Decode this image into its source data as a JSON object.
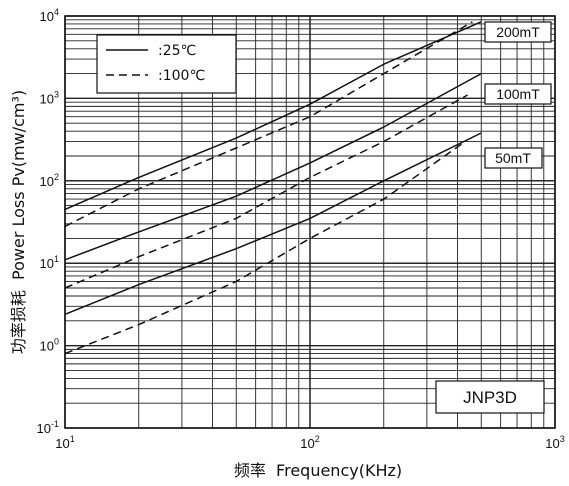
{
  "chart_data": {
    "type": "line",
    "xscale": "log",
    "yscale": "log",
    "xlim": [
      10,
      1000
    ],
    "ylim": [
      0.1,
      10000
    ],
    "xlabel": "频率  Frequency(KHz)",
    "ylabel": "功率损耗  Power Loss Pv(mw/cm³)",
    "x_tick_labels": [
      {
        "base": "10",
        "exp": "1"
      },
      {
        "base": "10",
        "exp": "2"
      },
      {
        "base": "10",
        "exp": "3"
      }
    ],
    "y_tick_labels": [
      {
        "base": "10",
        "exp": "-1"
      },
      {
        "base": "10",
        "exp": "0"
      },
      {
        "base": "10",
        "exp": "1"
      },
      {
        "base": "10",
        "exp": "2"
      },
      {
        "base": "10",
        "exp": "3"
      },
      {
        "base": "10",
        "exp": "4"
      }
    ],
    "grid": true,
    "legend": {
      "position": "top-left",
      "entries": [
        {
          "label": ":25℃",
          "style": "solid"
        },
        {
          "label": ":100℃",
          "style": "dashed"
        }
      ]
    },
    "material_label": "JNP3D",
    "flux_labels": [
      "200mT",
      "100mT",
      "50mT"
    ],
    "series": [
      {
        "flux": "200mT",
        "temp": "25℃",
        "style": "solid",
        "points": [
          [
            10,
            45
          ],
          [
            20,
            110
          ],
          [
            50,
            330
          ],
          [
            100,
            850
          ],
          [
            200,
            2600
          ],
          [
            500,
            8500
          ]
        ]
      },
      {
        "flux": "200mT",
        "temp": "100℃",
        "style": "dashed",
        "points": [
          [
            10,
            28
          ],
          [
            20,
            80
          ],
          [
            50,
            250
          ],
          [
            100,
            600
          ],
          [
            200,
            2000
          ],
          [
            460,
            8500
          ]
        ]
      },
      {
        "flux": "100mT",
        "temp": "25℃",
        "style": "solid",
        "points": [
          [
            10,
            11
          ],
          [
            20,
            24
          ],
          [
            50,
            65
          ],
          [
            100,
            165
          ],
          [
            200,
            450
          ],
          [
            500,
            2000
          ]
        ]
      },
      {
        "flux": "100mT",
        "temp": "100℃",
        "style": "dashed",
        "points": [
          [
            10,
            5
          ],
          [
            20,
            12
          ],
          [
            50,
            35
          ],
          [
            100,
            110
          ],
          [
            200,
            300
          ],
          [
            440,
            1100
          ]
        ]
      },
      {
        "flux": "50mT",
        "temp": "25℃",
        "style": "solid",
        "points": [
          [
            10,
            2.4
          ],
          [
            20,
            5.5
          ],
          [
            50,
            15
          ],
          [
            100,
            35
          ],
          [
            200,
            100
          ],
          [
            500,
            380
          ]
        ]
      },
      {
        "flux": "50mT",
        "temp": "100℃",
        "style": "dashed",
        "points": [
          [
            10,
            0.8
          ],
          [
            20,
            1.8
          ],
          [
            50,
            6
          ],
          [
            100,
            20
          ],
          [
            200,
            60
          ],
          [
            430,
            300
          ]
        ]
      }
    ]
  }
}
